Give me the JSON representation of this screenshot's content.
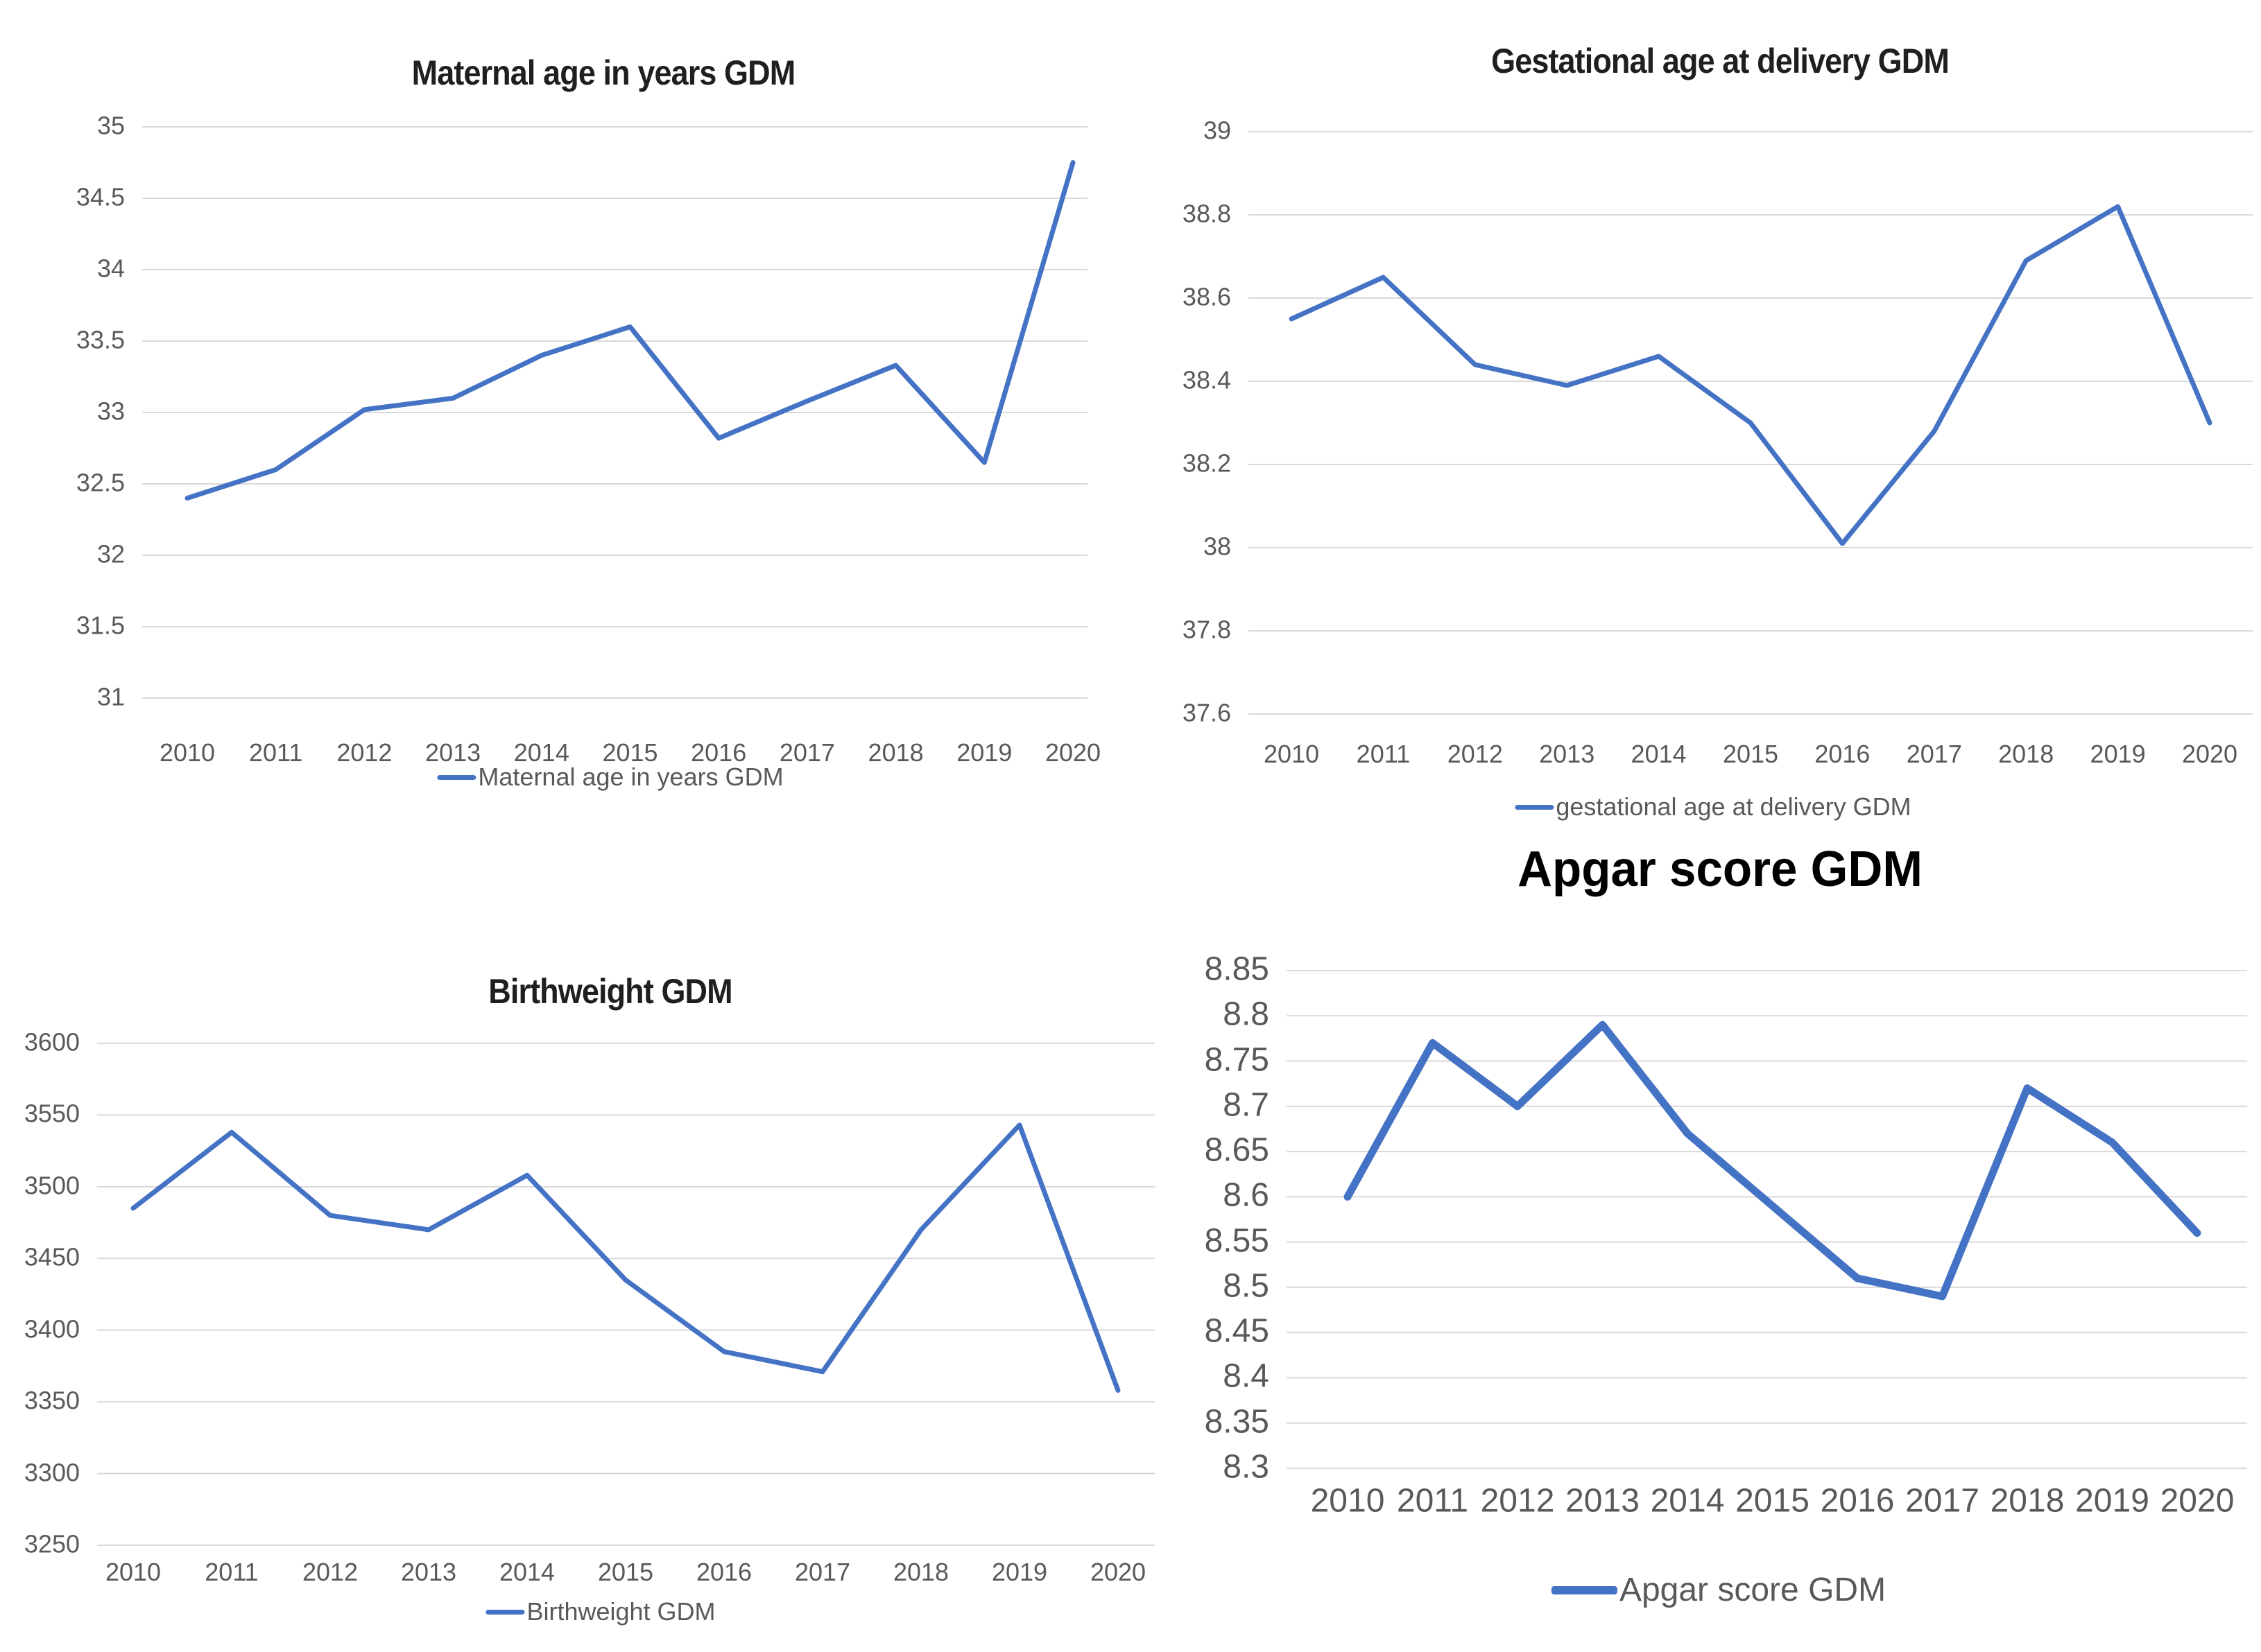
{
  "page": {
    "background": "#ffffff"
  },
  "colors": {
    "line": "#4472C4",
    "gridline": "#D9D9D9",
    "axis_text": "#595959",
    "title_text": "#1F1F1F",
    "apgar_title_text": "#000000"
  },
  "chart_data": [
    {
      "type": "line",
      "title": "Maternal age in years GDM",
      "series_label": "Maternal age in years GDM",
      "x": [
        "2010",
        "2011",
        "2012",
        "2013",
        "2014",
        "2015",
        "2016",
        "2017",
        "2018",
        "2019",
        "2020"
      ],
      "values": [
        32.4,
        32.6,
        33.02,
        33.1,
        33.4,
        33.6,
        32.82,
        33.08,
        33.33,
        32.65,
        34.75
      ],
      "y_ticks": [
        "35",
        "34.5",
        "34",
        "33.5",
        "33",
        "32.5",
        "32",
        "31.5",
        "31"
      ],
      "ylim": [
        31,
        35
      ],
      "xlabel": "",
      "ylabel": "",
      "grid": true,
      "legend_position": "bottom"
    },
    {
      "type": "line",
      "title": "Gestational age at delivery GDM",
      "series_label": "gestational age at delivery GDM",
      "x": [
        "2010",
        "2011",
        "2012",
        "2013",
        "2014",
        "2015",
        "2016",
        "2017",
        "2018",
        "2019",
        "2020"
      ],
      "values": [
        38.55,
        38.65,
        38.44,
        38.39,
        38.46,
        38.3,
        38.01,
        38.28,
        38.69,
        38.82,
        38.3
      ],
      "y_ticks": [
        "39",
        "38.8",
        "38.6",
        "38.4",
        "38.2",
        "38",
        "37.8",
        "37.6"
      ],
      "ylim": [
        37.6,
        39
      ],
      "xlabel": "",
      "ylabel": "",
      "grid": true,
      "legend_position": "bottom"
    },
    {
      "type": "line",
      "title": "Birthweight GDM",
      "series_label": "Birthweight GDM",
      "x": [
        "2010",
        "2011",
        "2012",
        "2013",
        "2014",
        "2015",
        "2016",
        "2017",
        "2018",
        "2019",
        "2020"
      ],
      "values": [
        3485,
        3538,
        3480,
        3470,
        3508,
        3435,
        3385,
        3371,
        3470,
        3543,
        3358
      ],
      "y_ticks": [
        "3600",
        "3550",
        "3500",
        "3450",
        "3400",
        "3350",
        "3300",
        "3250"
      ],
      "ylim": [
        3250,
        3600
      ],
      "xlabel": "",
      "ylabel": "",
      "grid": true,
      "legend_position": "bottom"
    },
    {
      "type": "line",
      "title": "Apgar score GDM",
      "series_label": "Apgar score GDM",
      "x": [
        "2010",
        "2011",
        "2012",
        "2013",
        "2014",
        "2015",
        "2016",
        "2017",
        "2018",
        "2019",
        "2020"
      ],
      "values": [
        8.6,
        8.77,
        8.7,
        8.79,
        8.67,
        8.59,
        8.51,
        8.49,
        8.72,
        8.66,
        8.56
      ],
      "y_ticks": [
        "8.85",
        "8.8",
        "8.75",
        "8.7",
        "8.65",
        "8.6",
        "8.55",
        "8.5",
        "8.45",
        "8.4",
        "8.35",
        "8.3"
      ],
      "ylim": [
        8.3,
        8.85
      ],
      "xlabel": "",
      "ylabel": "",
      "grid": true,
      "legend_position": "bottom"
    }
  ]
}
